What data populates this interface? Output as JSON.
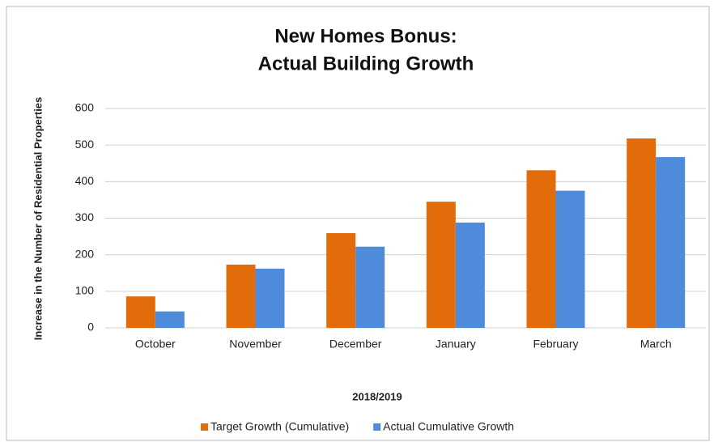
{
  "chart_data": {
    "type": "bar",
    "title": [
      "New Homes Bonus:",
      "Actual Building Growth"
    ],
    "x_label": "2018/2019",
    "y_label": "Increase in the Number of Residential Properties",
    "categories": [
      "October",
      "November",
      "December",
      "January",
      "February",
      "March"
    ],
    "series": [
      {
        "name": "Target Growth (Cumulative)",
        "color": "#e36c0a",
        "values": [
          86,
          173,
          259,
          345,
          431,
          518
        ]
      },
      {
        "name": "Actual Cumulative Growth",
        "color": "#4f8bdb",
        "values": [
          45,
          162,
          222,
          288,
          375,
          467
        ]
      }
    ],
    "ylim": [
      0,
      600
    ],
    "yticks": [
      0,
      100,
      200,
      300,
      400,
      500,
      600
    ],
    "grid": true,
    "legend": "bottom"
  }
}
